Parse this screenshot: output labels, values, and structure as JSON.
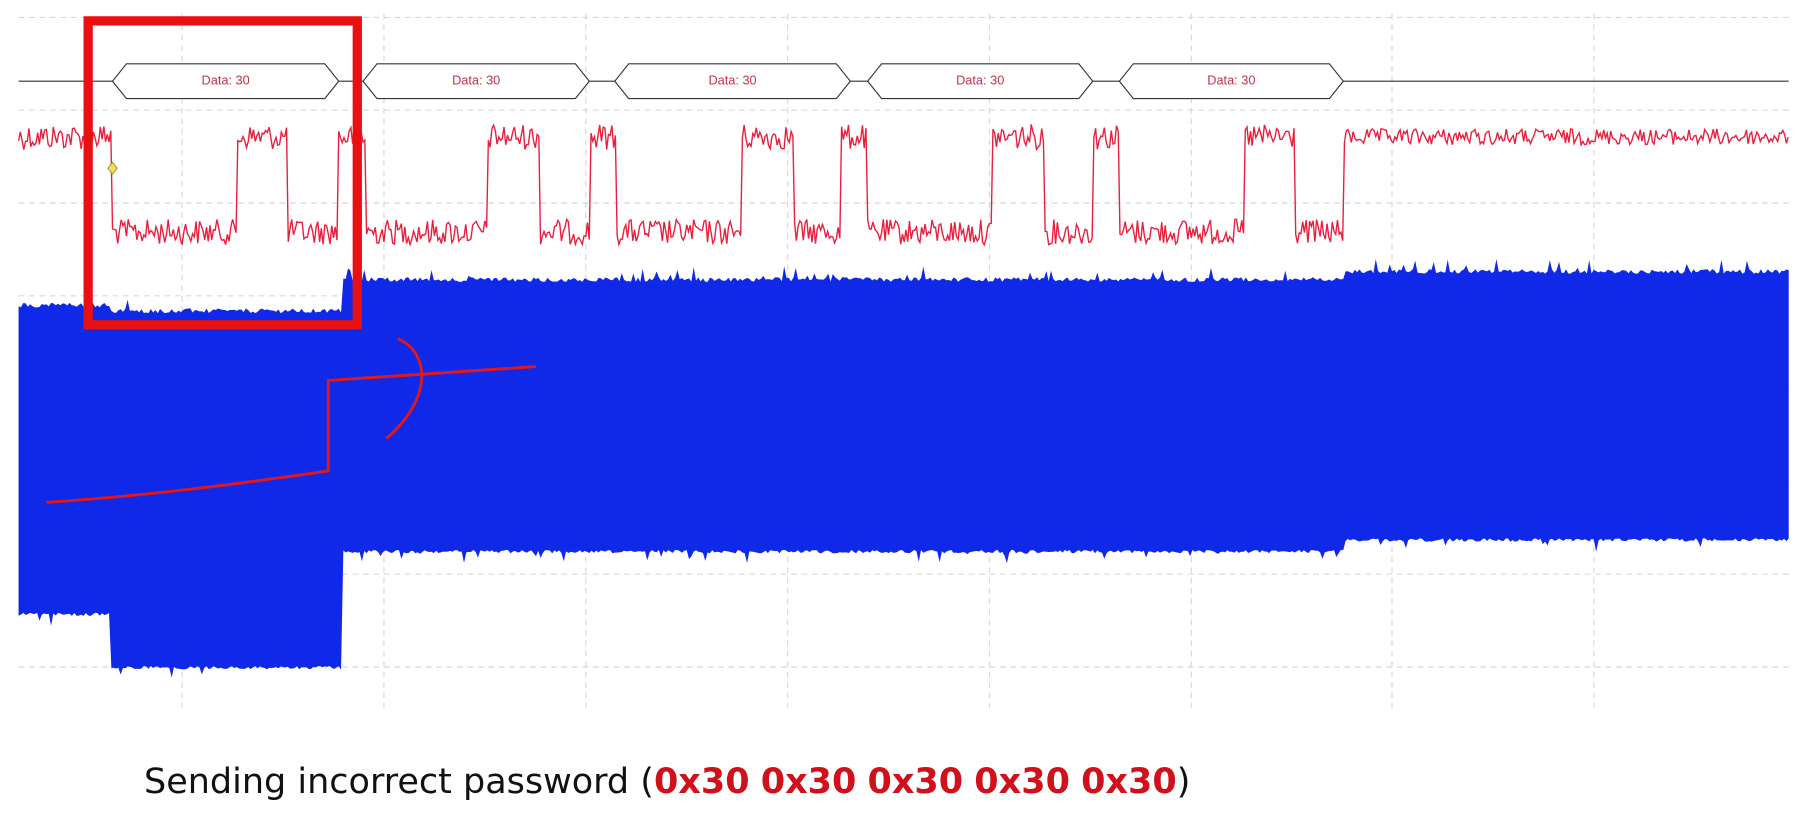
{
  "decoder": {
    "labels": [
      "Data: 30",
      "Data: 30",
      "Data: 30",
      "Data: 30",
      "Data: 30"
    ]
  },
  "caption": {
    "prefix": "Sending incorrect password (",
    "bytes": [
      "0x30",
      "0x30",
      "0x30",
      "0x30",
      "0x30"
    ],
    "suffix": ")"
  }
}
